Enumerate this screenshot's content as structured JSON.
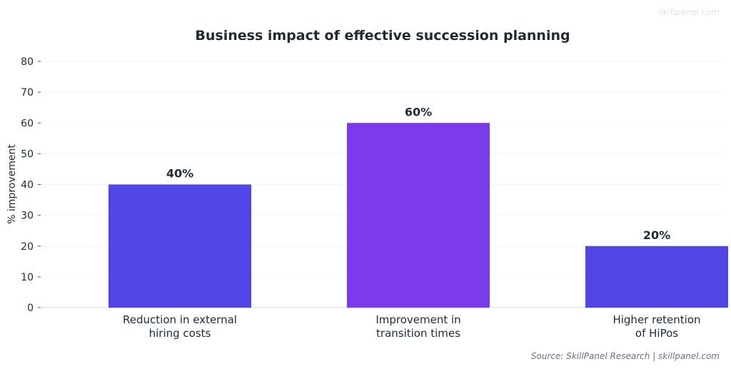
{
  "watermark": "skillpanel.com",
  "source": "Source: SkillPanel Research | skillpanel.com",
  "colors": {
    "bar_primary": "#4f46e5",
    "bar_highlight": "#7c3aed",
    "text": "#1f2937"
  },
  "chart_data": {
    "type": "bar",
    "title": "Business impact of effective succession planning",
    "xlabel": "",
    "ylabel": "% improvement",
    "ylim": [
      0,
      80
    ],
    "yticks": [
      0,
      10,
      20,
      30,
      40,
      50,
      60,
      70,
      80
    ],
    "grid": true,
    "categories": [
      [
        "Reduction in external",
        "hiring costs"
      ],
      [
        "Improvement in",
        "transition times"
      ],
      [
        "Higher retention",
        "of HiPos"
      ]
    ],
    "values": [
      40,
      60,
      20
    ],
    "data_labels": [
      "40%",
      "60%",
      "20%"
    ],
    "bar_colors": [
      "#4f46e5",
      "#7c3aed",
      "#4f46e5"
    ]
  }
}
